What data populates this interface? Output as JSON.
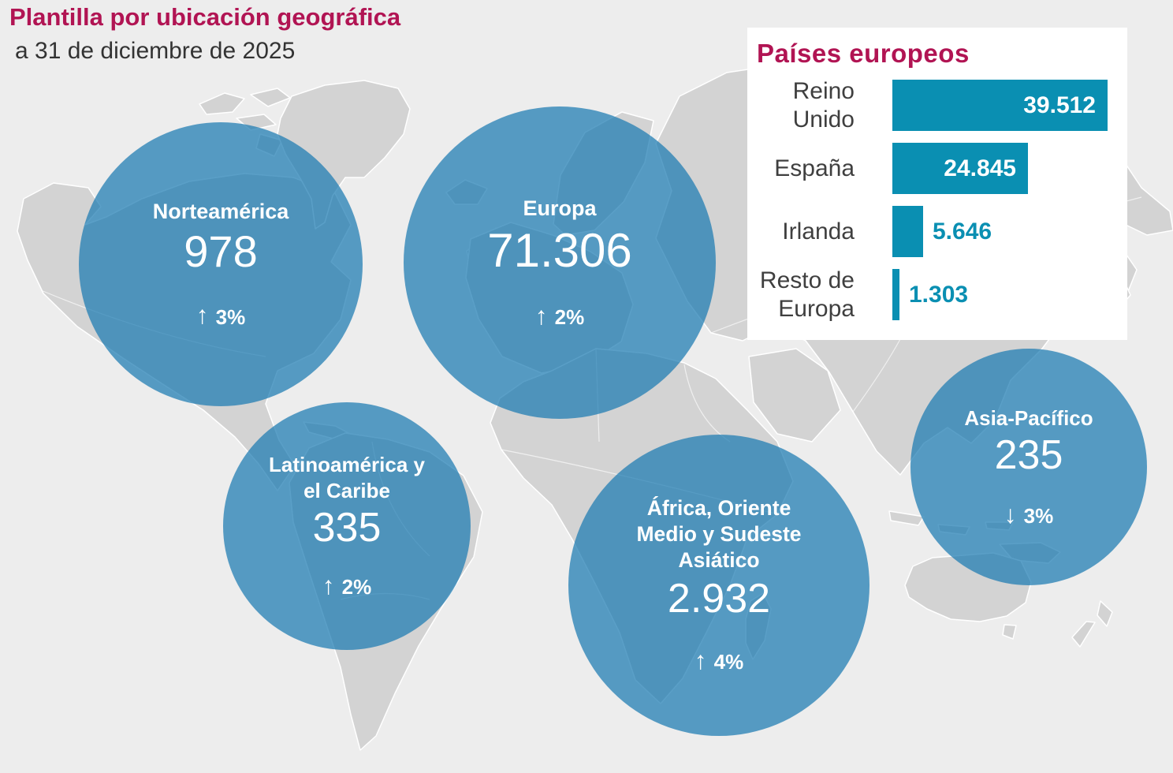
{
  "header": {
    "title": "Plantilla por ubicación geográfica",
    "subtitle": "a 31 de diciembre de 2025"
  },
  "regions": [
    {
      "name": "Norteamérica",
      "value": "978",
      "arrow": "↑",
      "change": "3%",
      "direction": "up"
    },
    {
      "name": "Europa",
      "value": "71.306",
      "arrow": "↑",
      "change": "2%",
      "direction": "up"
    },
    {
      "name": "Latinoamérica y el Caribe",
      "value": "335",
      "arrow": "↑",
      "change": "2%",
      "direction": "up"
    },
    {
      "name": "África, Oriente Medio y Sudeste Asiático",
      "value": "2.932",
      "arrow": "↑",
      "change": "4%",
      "direction": "up"
    },
    {
      "name": "Asia-Pacífico",
      "value": "235",
      "arrow": "↓",
      "change": "3%",
      "direction": "down"
    }
  ],
  "panel": {
    "title": "Países europeos"
  },
  "chart_data": [
    {
      "type": "bubble",
      "title": "Plantilla por ubicación geográfica",
      "subtitle": "a 31 de diciembre de 2025",
      "categories": [
        "Norteamérica",
        "Europa",
        "Latinoamérica y el Caribe",
        "África, Oriente Medio y Sudeste Asiático",
        "Asia-Pacífico"
      ],
      "values": [
        978,
        71306,
        335,
        2932,
        235
      ],
      "value_labels": [
        "978",
        "71.306",
        "335",
        "2.932",
        "235"
      ],
      "pct_change": [
        "+3%",
        "+2%",
        "+2%",
        "+4%",
        "-3%"
      ],
      "bubble_color": "#1b7ab1"
    },
    {
      "type": "bar",
      "orientation": "horizontal",
      "title": "Países europeos",
      "categories": [
        "Reino Unido",
        "España",
        "Irlanda",
        "Resto de Europa"
      ],
      "values": [
        39512,
        24845,
        5646,
        1303
      ],
      "value_labels": [
        "39.512",
        "24.845",
        "5.646",
        "1.303"
      ],
      "xlim": [
        0,
        39512
      ],
      "bar_color": "#0a8fb2",
      "legend": "none",
      "grid": "off"
    }
  ],
  "colors": {
    "accent_crimson": "#b11453",
    "bubble_blue": "#1b7ab1",
    "bar_teal": "#0a8fb2",
    "map_land": "#d3d3d3",
    "background": "#ededed",
    "panel_background": "#ffffff",
    "text_dark": "#333333"
  }
}
